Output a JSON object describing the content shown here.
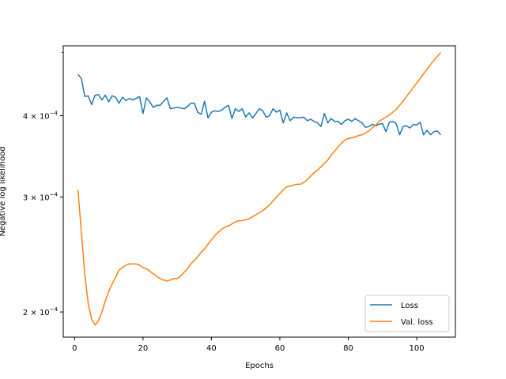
{
  "chart_data": {
    "type": "line",
    "title": "",
    "xlabel": "Epochs",
    "ylabel": "Negative log likelihood",
    "xlim": [
      -3.3,
      111.3
    ],
    "ylim": [
      0.000183,
      0.000512
    ],
    "yscale": "log",
    "grid": false,
    "legend_position": "bottom-right",
    "x_ticks": [
      {
        "value": 0,
        "label": "0"
      },
      {
        "value": 20,
        "label": "20"
      },
      {
        "value": 40,
        "label": "40"
      },
      {
        "value": 60,
        "label": "60"
      },
      {
        "value": 80,
        "label": "80"
      },
      {
        "value": 100,
        "label": "100"
      }
    ],
    "y_ticks": [
      {
        "value": 0.0002,
        "label_base": "2 × 10",
        "label_exp": "−4"
      },
      {
        "value": 0.0003,
        "label_base": "3 × 10",
        "label_exp": "−4"
      },
      {
        "value": 0.0004,
        "label_base": "4 × 10",
        "label_exp": "−4"
      }
    ],
    "y_minor_ticks": [
      0.0005
    ],
    "x": [
      1,
      2,
      3,
      4,
      5,
      6,
      7,
      8,
      9,
      10,
      11,
      12,
      13,
      14,
      15,
      16,
      17,
      18,
      19,
      20,
      21,
      22,
      23,
      24,
      25,
      26,
      27,
      28,
      29,
      30,
      31,
      32,
      33,
      34,
      35,
      36,
      37,
      38,
      39,
      40,
      41,
      42,
      43,
      44,
      45,
      46,
      47,
      48,
      49,
      50,
      51,
      52,
      53,
      54,
      55,
      56,
      57,
      58,
      59,
      60,
      61,
      62,
      63,
      64,
      65,
      66,
      67,
      68,
      69,
      70,
      71,
      72,
      73,
      74,
      75,
      76,
      77,
      78,
      79,
      80,
      81,
      82,
      83,
      84,
      85,
      86,
      87,
      88,
      89,
      90,
      91,
      92,
      93,
      94,
      95,
      96,
      97,
      98,
      99,
      100,
      101,
      102,
      103,
      104,
      105,
      106,
      107
    ],
    "series": [
      {
        "name": "Loss",
        "color": "#1f77b4",
        "values": [
          0.000463,
          0.000456,
          0.000428,
          0.000429,
          0.000416,
          0.00043,
          0.000431,
          0.000423,
          0.00043,
          0.00042,
          0.000429,
          0.000427,
          0.000418,
          0.000427,
          0.000422,
          0.000425,
          0.000423,
          0.000425,
          0.000428,
          0.000403,
          0.000426,
          0.00042,
          0.000412,
          0.000415,
          0.000415,
          0.000421,
          0.000426,
          0.00041,
          0.000411,
          0.000412,
          0.000411,
          0.00041,
          0.000413,
          0.000418,
          0.000418,
          0.000405,
          0.000402,
          0.000421,
          0.000397,
          0.000405,
          0.000407,
          0.000406,
          0.000408,
          0.000412,
          0.000415,
          0.000396,
          0.00041,
          0.000406,
          0.00041,
          0.000398,
          0.000404,
          0.000397,
          0.000403,
          0.00041,
          0.000407,
          0.000398,
          0.0004,
          0.00041,
          0.000405,
          0.000408,
          0.00039,
          0.000404,
          0.000393,
          0.000398,
          0.000397,
          0.000397,
          0.000398,
          0.000393,
          0.000395,
          0.000392,
          0.00039,
          0.000385,
          0.000403,
          0.00039,
          0.000396,
          0.000392,
          0.000392,
          0.000388,
          0.000393,
          0.000395,
          0.000392,
          0.000396,
          0.000393,
          0.00039,
          0.000384,
          0.000385,
          0.000388,
          0.000386,
          0.000388,
          0.000389,
          0.000378,
          0.000391,
          0.000392,
          0.000389,
          0.000374,
          0.000385,
          0.000386,
          0.000383,
          0.000388,
          0.000387,
          0.000391,
          0.000374,
          0.00038,
          0.000374,
          0.000378,
          0.000379,
          0.000374
        ]
      },
      {
        "name": "Val. loss",
        "color": "#ff7f0e",
        "values": [
          0.000308,
          0.000265,
          0.000228,
          0.000206,
          0.000195,
          0.000191,
          0.000194,
          0.0002,
          0.000208,
          0.000215,
          0.000221,
          0.000226,
          0.000232,
          0.000234,
          0.000236,
          0.000237,
          0.000237,
          0.000237,
          0.000236,
          0.000234,
          0.000233,
          0.000231,
          0.000229,
          0.000227,
          0.000225,
          0.000224,
          0.000223,
          0.000224,
          0.000225,
          0.000225,
          0.000227,
          0.00023,
          0.000233,
          0.000237,
          0.00024,
          0.000243,
          0.000247,
          0.00025,
          0.000254,
          0.000258,
          0.000262,
          0.000265,
          0.000268,
          0.00027,
          0.000271,
          0.000273,
          0.000275,
          0.000276,
          0.000276,
          0.000277,
          0.000278,
          0.00028,
          0.000282,
          0.000284,
          0.000286,
          0.000289,
          0.000292,
          0.000296,
          0.0003,
          0.000304,
          0.000308,
          0.000311,
          0.000312,
          0.000313,
          0.000314,
          0.000314,
          0.000316,
          0.000319,
          0.000323,
          0.000327,
          0.00033,
          0.000334,
          0.000338,
          0.000342,
          0.000348,
          0.000353,
          0.000358,
          0.000363,
          0.000367,
          0.000369,
          0.00037,
          0.000371,
          0.000373,
          0.000374,
          0.000376,
          0.000379,
          0.000383,
          0.000387,
          0.000392,
          0.000395,
          0.000398,
          0.000401,
          0.000405,
          0.000409,
          0.000415,
          0.000421,
          0.000428,
          0.000435,
          0.000442,
          0.000449,
          0.000456,
          0.000464,
          0.000471,
          0.000479,
          0.000486,
          0.000493,
          0.0005
        ]
      }
    ]
  }
}
